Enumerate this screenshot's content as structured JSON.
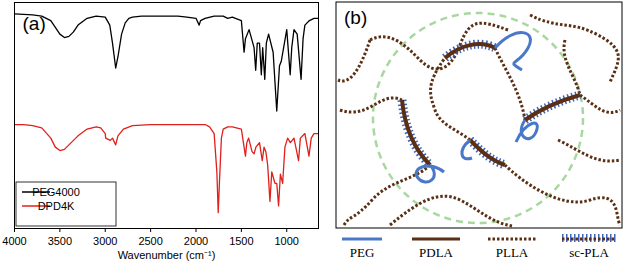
{
  "chart_data": {
    "type": "line",
    "title": "(a)",
    "x_label": "Wavenumber (cm⁻¹)",
    "xlim": [
      4000,
      650
    ],
    "xticks": [
      4000,
      3500,
      3000,
      2500,
      2000,
      1500,
      1000
    ],
    "ylim": [
      0,
      100
    ],
    "tick_labels": "x",
    "legend": "lower left",
    "series": [
      {
        "name": "PEG4000",
        "color": "#000000",
        "x": [
          4000,
          3800,
          3700,
          3600,
          3550,
          3500,
          3450,
          3400,
          3350,
          3300,
          3200,
          3100,
          3000,
          2950,
          2920,
          2885,
          2860,
          2820,
          2780,
          2740,
          2700,
          2600,
          2500,
          2400,
          2300,
          2200,
          2100,
          2000,
          1965,
          1950,
          1900,
          1800,
          1700,
          1650,
          1600,
          1500,
          1470,
          1455,
          1415,
          1360,
          1342,
          1325,
          1300,
          1280,
          1265,
          1242,
          1225,
          1200,
          1150,
          1110,
          1080,
          1060,
          1000,
          962,
          945,
          920,
          885,
          842,
          820,
          800,
          750,
          700,
          650
        ],
        "values": [
          95,
          94.5,
          94,
          92,
          89,
          86,
          84.5,
          85,
          87,
          90,
          93,
          94,
          93.5,
          90,
          82,
          71,
          76,
          86,
          91,
          93,
          93.5,
          94,
          94,
          94,
          94,
          94,
          93.5,
          93,
          90,
          92,
          93,
          94,
          94,
          93,
          93.5,
          92,
          78,
          84,
          88,
          80,
          70,
          82,
          82,
          68,
          80,
          66,
          82,
          86,
          78,
          52,
          72,
          74,
          88,
          68,
          80,
          88,
          86,
          66,
          84,
          90,
          92,
          93,
          93
        ]
      },
      {
        "name": "DPD4K",
        "color": "#e0201b",
        "x": [
          4000,
          3900,
          3800,
          3700,
          3600,
          3550,
          3500,
          3450,
          3400,
          3300,
          3200,
          3100,
          3050,
          3000,
          2995,
          2945,
          2920,
          2885,
          2860,
          2800,
          2700,
          2500,
          2300,
          2100,
          2000,
          1900,
          1850,
          1800,
          1770,
          1755,
          1740,
          1720,
          1700,
          1650,
          1600,
          1500,
          1455,
          1440,
          1420,
          1382,
          1360,
          1340,
          1300,
          1270,
          1250,
          1230,
          1210,
          1185,
          1165,
          1130,
          1110,
          1090,
          1070,
          1045,
          1020,
          990,
          960,
          920,
          870,
          850,
          800,
          755,
          730,
          700,
          650
        ],
        "values": [
          46,
          46,
          45.5,
          44.5,
          40,
          36,
          34.5,
          35,
          37,
          41,
          44,
          45,
          44.5,
          42,
          40,
          39,
          40,
          37,
          41,
          44,
          45.5,
          46,
          46,
          46,
          46,
          46,
          45,
          42,
          25,
          7,
          22,
          40,
          44,
          45,
          45,
          44,
          32,
          38,
          40,
          34,
          33,
          36,
          38,
          30,
          36,
          34,
          28,
          12,
          25,
          20,
          20,
          10,
          24,
          20,
          36,
          40,
          38,
          40,
          30,
          40,
          42,
          32,
          40,
          42,
          42
        ]
      }
    ]
  },
  "diagram": {
    "label": "(b)",
    "legend": [
      {
        "name": "PEG"
      },
      {
        "name": "PDLA"
      },
      {
        "name": "PLLA"
      },
      {
        "name": "sc-PLA"
      }
    ]
  }
}
